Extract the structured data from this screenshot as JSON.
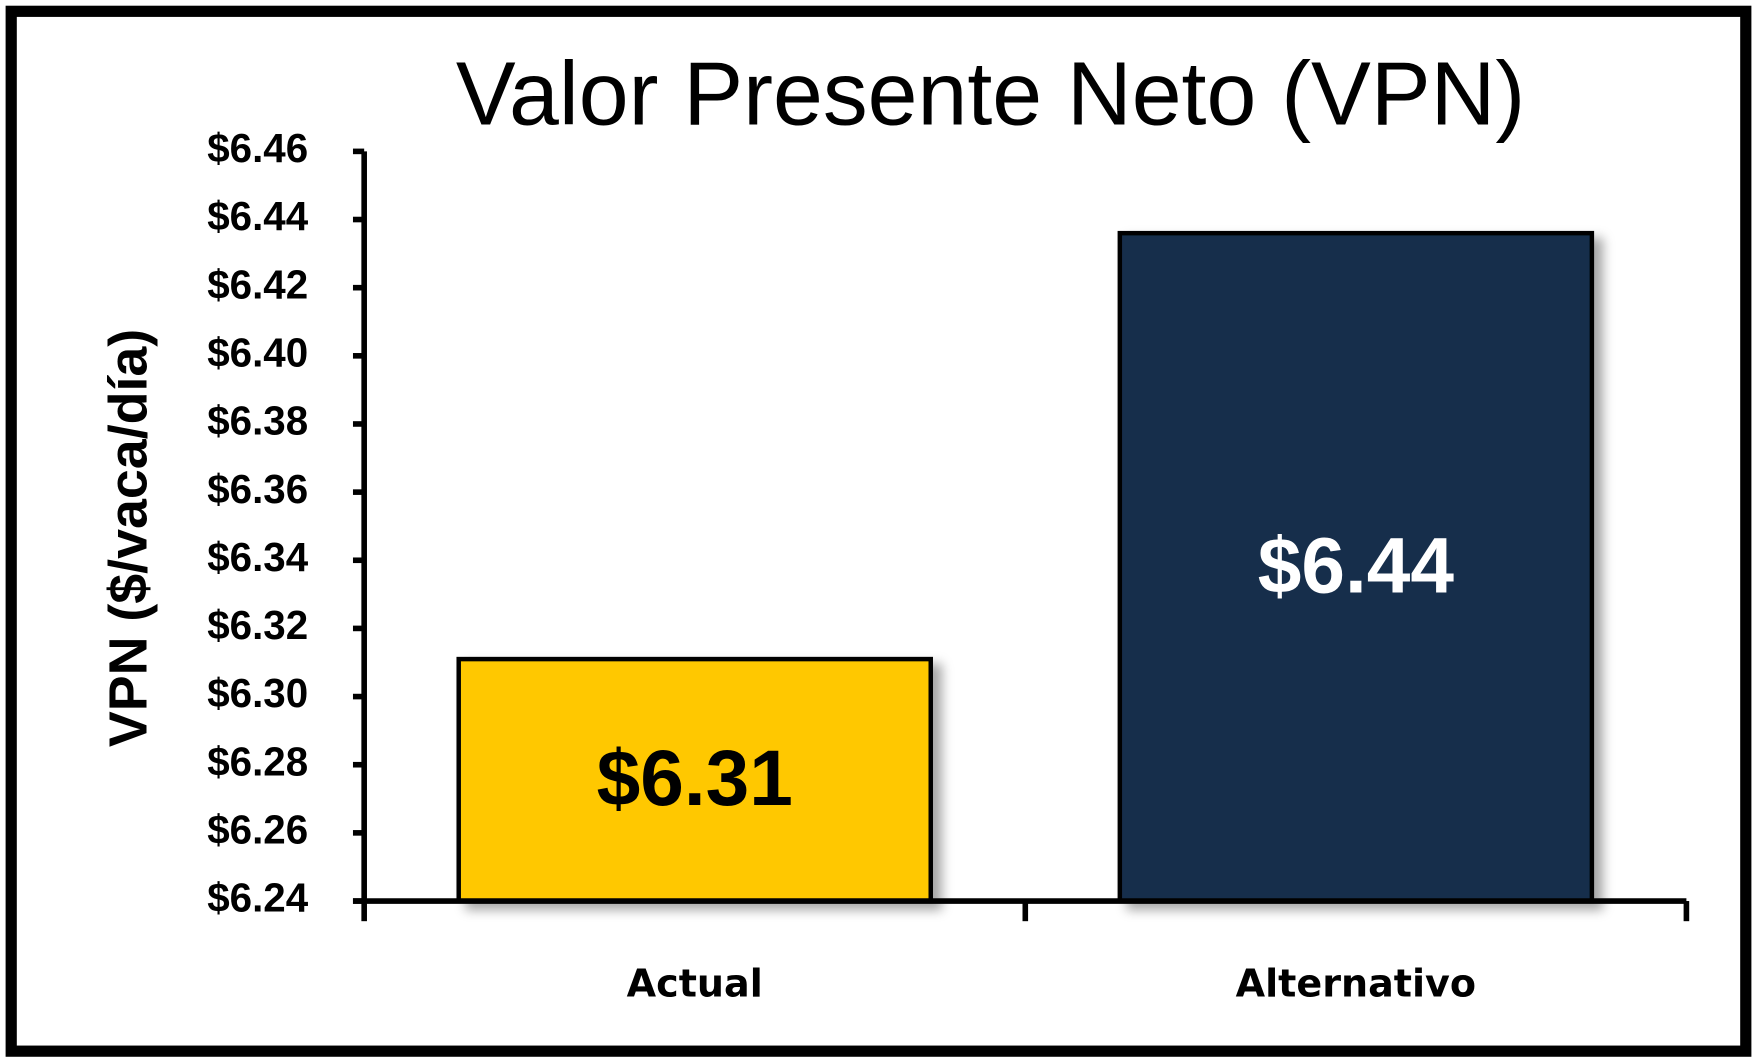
{
  "chart_data": {
    "type": "bar",
    "title": "Valor Presente Neto (VPN)",
    "y_label": "VPN ($/vaca/día)",
    "categories": [
      "Actual",
      "Alternativo"
    ],
    "values": [
      6.311,
      6.436
    ],
    "value_labels": [
      "$6.31",
      "$6.44"
    ],
    "colors": [
      "#ffc800",
      "#162e4c"
    ],
    "value_label_colors": [
      "#000000",
      "#ffffff"
    ],
    "ylim": [
      6.24,
      6.46
    ],
    "yticks": [
      {
        "value": 6.24,
        "label": "$6.24"
      },
      {
        "value": 6.26,
        "label": "$6.26"
      },
      {
        "value": 6.28,
        "label": "$6.28"
      },
      {
        "value": 6.3,
        "label": "$6.30"
      },
      {
        "value": 6.32,
        "label": "$6.32"
      },
      {
        "value": 6.34,
        "label": "$6.34"
      },
      {
        "value": 6.36,
        "label": "$6.36"
      },
      {
        "value": 6.38,
        "label": "$6.38"
      },
      {
        "value": 6.4,
        "label": "$6.40"
      },
      {
        "value": 6.42,
        "label": "$6.42"
      },
      {
        "value": 6.44,
        "label": "$6.44"
      },
      {
        "value": 6.46,
        "label": "$6.46"
      }
    ],
    "grid": false
  }
}
